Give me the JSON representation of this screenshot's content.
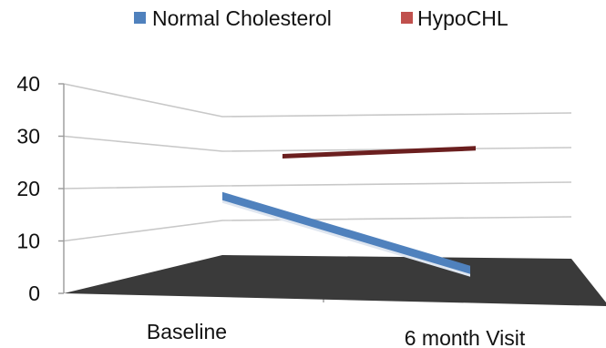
{
  "chart_data": {
    "type": "line",
    "title": "",
    "xlabel": "",
    "ylabel": "",
    "categories": [
      "Baseline",
      "6 month Visit"
    ],
    "ylim": [
      0,
      40
    ],
    "yticks": [
      0,
      10,
      20,
      30,
      40
    ],
    "grid": true,
    "legend_position": "top",
    "series": [
      {
        "name": "Normal Cholesterol",
        "values": [
          15,
          3
        ],
        "color": "#4f81bd"
      },
      {
        "name": "HypoCHL",
        "values": [
          27,
          32
        ],
        "color": "#6b1f1f"
      }
    ],
    "legend_swatch_colors": [
      "#4f81bd",
      "#c0504d"
    ],
    "floor_color": "#3a3a3a"
  }
}
